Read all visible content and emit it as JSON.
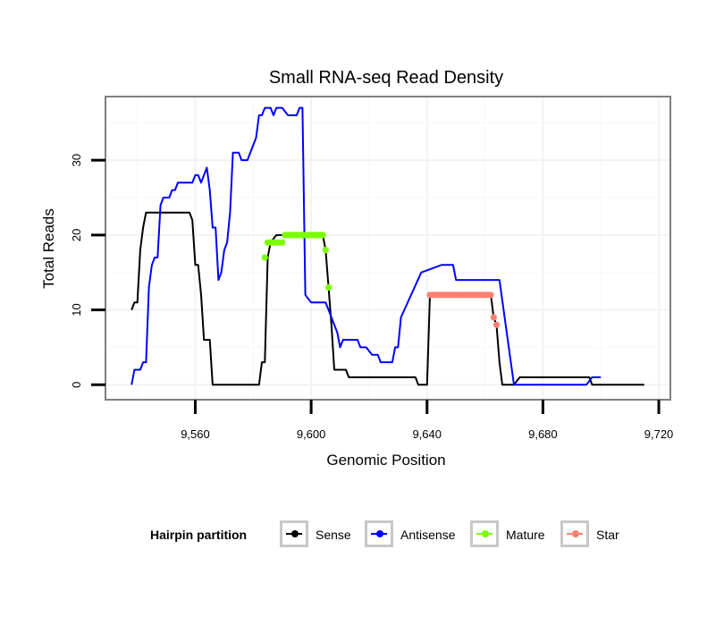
{
  "chart_data": {
    "type": "line",
    "title": "Small RNA-seq Read Density",
    "xlabel": "Genomic Position",
    "ylabel": "Total Reads",
    "xlim": [
      9529,
      9724
    ],
    "ylim": [
      -2,
      38.5
    ],
    "xticks": [
      9560,
      9600,
      9640,
      9680,
      9720
    ],
    "xtick_labels": [
      "9,560",
      "9,600",
      "9,640",
      "9,680",
      "9,720"
    ],
    "yticks": [
      0,
      10,
      20,
      30
    ],
    "ytick_labels": [
      "0",
      "10",
      "20",
      "30"
    ],
    "grid": true,
    "legend_position": "bottom",
    "legend": {
      "title": "Hairpin partition",
      "entries": [
        {
          "label": "Sense",
          "color": "#000000"
        },
        {
          "label": "Antisense",
          "color": "#0000ff"
        },
        {
          "label": "Mature",
          "color": "#7cfc00"
        },
        {
          "label": "Star",
          "color": "#fa8072"
        }
      ]
    },
    "series": [
      {
        "name": "Sense",
        "color": "#000000",
        "x": [
          9538,
          9539,
          9540,
          9541,
          9542,
          9543,
          9544,
          9545,
          9546,
          9550,
          9555,
          9558,
          9559,
          9560,
          9561,
          9562,
          9563,
          9564,
          9565,
          9566,
          9567,
          9570,
          9575,
          9580,
          9582,
          9583,
          9584,
          9585,
          9586,
          9588,
          9592,
          9598,
          9600,
          9602,
          9603,
          9604,
          9605,
          9606,
          9607,
          9608,
          9609,
          9610,
          9612,
          9613,
          9620,
          9630,
          9636,
          9637,
          9640,
          9641,
          9642,
          9648,
          9655,
          9660,
          9661,
          9662,
          9663,
          9664,
          9665,
          9666,
          9667,
          9668,
          9670,
          9672,
          9675,
          9680,
          9690,
          9696,
          9697,
          9705,
          9715
        ],
        "y": [
          10,
          11,
          11,
          18,
          21,
          23,
          23,
          23,
          23,
          23,
          23,
          23,
          22,
          16,
          16,
          12,
          6,
          6,
          6,
          0,
          0,
          0,
          0,
          0,
          0,
          3,
          3,
          17,
          19,
          20,
          20,
          20,
          20,
          20,
          20,
          20,
          18,
          13,
          8,
          2,
          2,
          2,
          2,
          1,
          1,
          1,
          1,
          0,
          0,
          12,
          12,
          12,
          12,
          12,
          12,
          12,
          9,
          8,
          3,
          0,
          0,
          0,
          0,
          1,
          1,
          1,
          1,
          1,
          0,
          0,
          0
        ]
      },
      {
        "name": "Antisense",
        "color": "#0000ff",
        "x": [
          9538,
          9539,
          9541,
          9542,
          9543,
          9544,
          9545,
          9546,
          9547,
          9548,
          9549,
          9550,
          9551,
          9552,
          9553,
          9554,
          9555,
          9556,
          9557,
          9558,
          9559,
          9560,
          9561,
          9562,
          9563,
          9564,
          9565,
          9566,
          9567,
          9568,
          9569,
          9570,
          9571,
          9572,
          9573,
          9574,
          9575,
          9576,
          9577,
          9578,
          9580,
          9581,
          9582,
          9583,
          9584,
          9586,
          9587,
          9588,
          9590,
          9592,
          9593,
          9594,
          9595,
          9596,
          9597,
          9598,
          9600,
          9601,
          9602,
          9603,
          9604,
          9605,
          9606,
          9607,
          9608,
          9609,
          9610,
          9611,
          9612,
          9613,
          9614,
          9615,
          9616,
          9617,
          9619,
          9621,
          9622,
          9623,
          9624,
          9625,
          9627,
          9628,
          9629,
          9630,
          9631,
          9638,
          9645,
          9649,
          9650,
          9651,
          9652,
          9665,
          9670,
          9672,
          9673,
          9675,
          9680,
          9695,
          9697,
          9698,
          9700
        ],
        "y": [
          0,
          2,
          2,
          3,
          3,
          13,
          16,
          17,
          17,
          24,
          25,
          25,
          25,
          26,
          26,
          27,
          27,
          27,
          27,
          27,
          27,
          28,
          28,
          27,
          28,
          29,
          26,
          21,
          21,
          14,
          15,
          18,
          19,
          23,
          31,
          31,
          31,
          30,
          30,
          30,
          32,
          33,
          36,
          36,
          37,
          37,
          36,
          37,
          37,
          36,
          36,
          36,
          36,
          37,
          37,
          12,
          11,
          11,
          11,
          11,
          11,
          11,
          10,
          9,
          8,
          7,
          5,
          6,
          6,
          6,
          6,
          6,
          6,
          5,
          5,
          4,
          4,
          4,
          3,
          3,
          3,
          3,
          5,
          5,
          9,
          15,
          16,
          16,
          14,
          14,
          14,
          14,
          0,
          0,
          0,
          0,
          0,
          0,
          1,
          1,
          1
        ]
      }
    ],
    "points": [
      {
        "name": "Mature",
        "color": "#7cfc00",
        "x": [
          9584,
          9585,
          9586,
          9587,
          9588,
          9589,
          9590,
          9591,
          9592,
          9593,
          9594,
          9595,
          9596,
          9597,
          9598,
          9599,
          9600,
          9601,
          9602,
          9603,
          9604,
          9605,
          9606
        ],
        "y": [
          17,
          19,
          19,
          19,
          19,
          19,
          19,
          20,
          20,
          20,
          20,
          20,
          20,
          20,
          20,
          20,
          20,
          20,
          20,
          20,
          20,
          18,
          13
        ]
      },
      {
        "name": "Star",
        "color": "#fa8072",
        "x": [
          9641,
          9642,
          9643,
          9644,
          9645,
          9646,
          9647,
          9648,
          9649,
          9650,
          9651,
          9652,
          9653,
          9654,
          9655,
          9656,
          9657,
          9658,
          9659,
          9660,
          9661,
          9662,
          9663,
          9664
        ],
        "y": [
          12,
          12,
          12,
          12,
          12,
          12,
          12,
          12,
          12,
          12,
          12,
          12,
          12,
          12,
          12,
          12,
          12,
          12,
          12,
          12,
          12,
          12,
          9,
          8
        ]
      }
    ]
  }
}
